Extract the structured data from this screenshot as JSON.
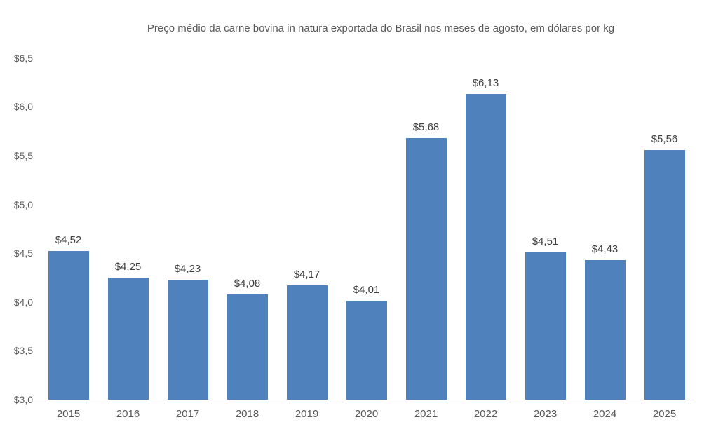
{
  "chart_data": {
    "type": "bar",
    "title": "Preço médio da carne bovina in natura exportada do Brasil nos meses de agosto, em dólares por kg",
    "categories": [
      "2015",
      "2016",
      "2017",
      "2018",
      "2019",
      "2020",
      "2021",
      "2022",
      "2023",
      "2024",
      "2025"
    ],
    "values": [
      4.52,
      4.25,
      4.23,
      4.08,
      4.17,
      4.01,
      5.68,
      6.13,
      4.51,
      4.43,
      5.56
    ],
    "data_labels": [
      "$4,52",
      "$4,25",
      "$4,23",
      "$4,08",
      "$4,17",
      "$4,01",
      "$5,68",
      "$6,13",
      "$4,51",
      "$4,43",
      "$5,56"
    ],
    "xlabel": "",
    "ylabel": "",
    "ylim": [
      3.0,
      6.5
    ],
    "ytick_values": [
      3.0,
      3.5,
      4.0,
      4.5,
      5.0,
      5.5,
      6.0,
      6.5
    ],
    "ytick_labels": [
      "$3,0",
      "$3,5",
      "$4,0",
      "$4,5",
      "$5,0",
      "$5,5",
      "$6,0",
      "$6,5"
    ],
    "grid": false,
    "legend": false,
    "colors": {
      "bar": "#4f81bd",
      "axis_line": "#d9d9d9",
      "tick_label": "#595959",
      "data_label": "#404040",
      "background": "#ffffff"
    }
  }
}
